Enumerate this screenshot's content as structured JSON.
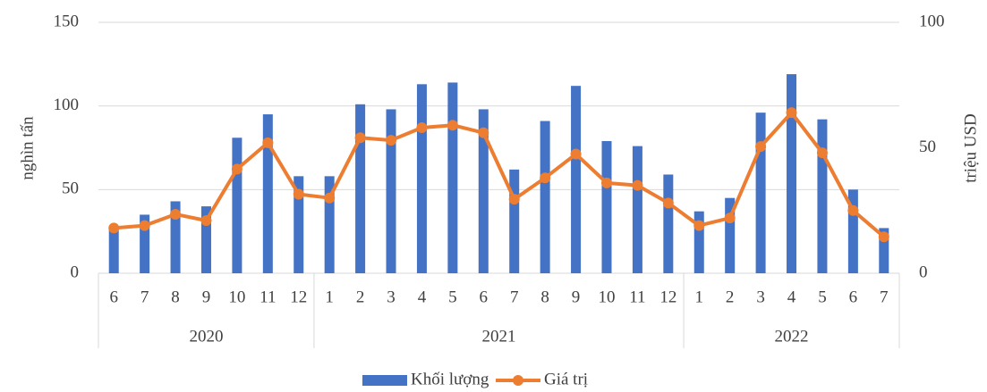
{
  "chart_data": {
    "type": "bar_line",
    "categories": [
      "6",
      "7",
      "8",
      "9",
      "10",
      "11",
      "12",
      "1",
      "2",
      "3",
      "4",
      "5",
      "6",
      "7",
      "8",
      "9",
      "10",
      "11",
      "12",
      "1",
      "2",
      "3",
      "4",
      "5",
      "6",
      "7"
    ],
    "category_groups": [
      {
        "name": "2020",
        "span": 7
      },
      {
        "name": "2021",
        "span": 12
      },
      {
        "name": "2022",
        "span": 7
      }
    ],
    "series": [
      {
        "name": "Khối lượng",
        "type": "bar",
        "color": "#4472c4",
        "axis": "y",
        "values": [
          28,
          35,
          43,
          40,
          81,
          95,
          58,
          58,
          101,
          98,
          113,
          114,
          98,
          62,
          91,
          112,
          79,
          76,
          59,
          37,
          45,
          96,
          119,
          92,
          50,
          27
        ]
      },
      {
        "name": "Giá trị",
        "type": "line",
        "color": "#ed7d31",
        "axis": "y2",
        "values": [
          18,
          19,
          23.5,
          21,
          41.5,
          52,
          31.5,
          30,
          54,
          53,
          58,
          59,
          56,
          29.5,
          38,
          47.5,
          36,
          35,
          28,
          19,
          22,
          50.5,
          64,
          48,
          25,
          14.5
        ]
      }
    ],
    "ylabel": "nghìn tấn",
    "y2label": "triệu USD",
    "ylim": [
      0,
      150
    ],
    "yticks": [
      0,
      50,
      100,
      150
    ],
    "y2lim": [
      0,
      100
    ],
    "y2ticks": [
      0,
      50,
      100
    ],
    "grid": true,
    "legend": "bottom"
  }
}
